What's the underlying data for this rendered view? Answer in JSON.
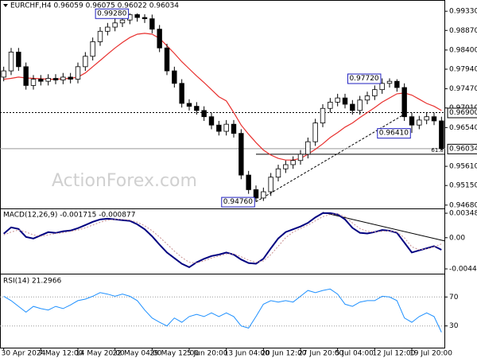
{
  "chart_data": [
    {
      "type": "candlestick",
      "title": "EURCHF,H4 0.96059 0.96075 0.96022 0.96034",
      "categories": [
        "30 Apr 2024",
        null,
        null,
        null,
        null,
        "7 May 12:00",
        null,
        null,
        null,
        null,
        "14 May 20:00",
        null,
        null,
        null,
        null,
        "22 May 04:00",
        null,
        null,
        null,
        null,
        "29 May 12:00",
        null,
        null,
        null,
        null,
        "5 Jun 20:00",
        null,
        null,
        null,
        null,
        "13 Jun 04:00",
        null,
        null,
        null,
        null,
        "20 Jun 12:00",
        null,
        null,
        null,
        null,
        "27 Jun 20:00",
        null,
        null,
        null,
        null,
        "5 Jul 04:00",
        null,
        null,
        null,
        null,
        "12 Jul 12:00",
        null,
        null,
        null,
        null,
        "19 Jul 20:00",
        null,
        null,
        null,
        null
      ],
      "open": [
        0.9775,
        0.979,
        0.9835,
        0.98,
        0.9755,
        0.977,
        0.9765,
        0.9772,
        0.9768,
        0.9775,
        0.977,
        0.98,
        0.9825,
        0.986,
        0.9885,
        0.9895,
        0.9905,
        0.9912,
        0.9925,
        0.9918,
        0.9915,
        0.989,
        0.9845,
        0.979,
        0.976,
        0.9712,
        0.9705,
        0.9695,
        0.968,
        0.966,
        0.9645,
        0.9662,
        0.964,
        0.954,
        0.9505,
        0.9485,
        0.95,
        0.9535,
        0.9555,
        0.9565,
        0.9575,
        0.959,
        0.962,
        0.9665,
        0.97,
        0.9715,
        0.9725,
        0.971,
        0.9695,
        0.972,
        0.973,
        0.9745,
        0.976,
        0.9765,
        0.975,
        0.968,
        0.966,
        0.9672,
        0.968,
        0.967
      ],
      "high": [
        0.98,
        0.9845,
        0.9845,
        0.981,
        0.978,
        0.978,
        0.9782,
        0.9782,
        0.9785,
        0.9785,
        0.981,
        0.9835,
        0.987,
        0.9895,
        0.9905,
        0.9915,
        0.9922,
        0.9928,
        0.9928,
        0.9926,
        0.9925,
        0.99,
        0.9855,
        0.98,
        0.977,
        0.9722,
        0.9715,
        0.9705,
        0.969,
        0.967,
        0.9672,
        0.9672,
        0.965,
        0.955,
        0.9515,
        0.951,
        0.9545,
        0.9565,
        0.9575,
        0.9585,
        0.96,
        0.963,
        0.9675,
        0.971,
        0.9725,
        0.9735,
        0.9735,
        0.972,
        0.973,
        0.974,
        0.9755,
        0.9772,
        0.9772,
        0.977,
        0.976,
        0.969,
        0.9682,
        0.969,
        0.969,
        0.968
      ],
      "low": [
        0.9765,
        0.978,
        0.979,
        0.9745,
        0.9745,
        0.9755,
        0.9755,
        0.9758,
        0.9758,
        0.976,
        0.976,
        0.979,
        0.9815,
        0.985,
        0.9875,
        0.9885,
        0.9895,
        0.9902,
        0.9908,
        0.9905,
        0.988,
        0.9835,
        0.978,
        0.975,
        0.9702,
        0.9695,
        0.9685,
        0.967,
        0.965,
        0.9635,
        0.9635,
        0.963,
        0.953,
        0.9495,
        0.9476,
        0.9478,
        0.949,
        0.9525,
        0.9545,
        0.9555,
        0.9565,
        0.958,
        0.961,
        0.9655,
        0.969,
        0.9705,
        0.97,
        0.9685,
        0.9685,
        0.971,
        0.972,
        0.9735,
        0.975,
        0.974,
        0.967,
        0.9641,
        0.965,
        0.9662,
        0.966,
        0.96
      ],
      "close": [
        0.979,
        0.9835,
        0.98,
        0.9755,
        0.977,
        0.9765,
        0.9772,
        0.9768,
        0.9775,
        0.977,
        0.98,
        0.9825,
        0.986,
        0.9885,
        0.9895,
        0.9905,
        0.9912,
        0.9925,
        0.9918,
        0.9915,
        0.989,
        0.9845,
        0.979,
        0.976,
        0.9712,
        0.9705,
        0.9695,
        0.968,
        0.966,
        0.9645,
        0.9662,
        0.964,
        0.954,
        0.9505,
        0.9485,
        0.95,
        0.9535,
        0.9555,
        0.9565,
        0.9575,
        0.959,
        0.962,
        0.9665,
        0.97,
        0.9715,
        0.9725,
        0.971,
        0.9695,
        0.972,
        0.973,
        0.9745,
        0.976,
        0.9765,
        0.975,
        0.968,
        0.966,
        0.9672,
        0.968,
        0.967,
        0.96034
      ],
      "color": "#000000",
      "ma": {
        "color": "#e8302e",
        "values": [
          0.977,
          0.9772,
          0.9775,
          0.9773,
          0.9772,
          0.9771,
          0.977,
          0.977,
          0.9771,
          0.9772,
          0.9775,
          0.9785,
          0.98,
          0.9815,
          0.983,
          0.9845,
          0.9858,
          0.987,
          0.9878,
          0.988,
          0.9878,
          0.9868,
          0.985,
          0.9832,
          0.9812,
          0.9795,
          0.9778,
          0.9762,
          0.9745,
          0.9728,
          0.9718,
          0.969,
          0.966,
          0.9638,
          0.9618,
          0.96,
          0.9588,
          0.958,
          0.9576,
          0.9576,
          0.958,
          0.959,
          0.9602,
          0.9615,
          0.963,
          0.9642,
          0.9655,
          0.9665,
          0.9678,
          0.969,
          0.9702,
          0.9715,
          0.9725,
          0.9735,
          0.9737,
          0.9732,
          0.9722,
          0.9712,
          0.9705,
          0.9695
        ]
      },
      "ylim": [
        0.946,
        0.996
      ],
      "yticks": [
        {
          "value": 0.9933,
          "label": "0.99330"
        },
        {
          "value": 0.9887,
          "label": "0.98870"
        },
        {
          "value": 0.984,
          "label": "0.98400"
        },
        {
          "value": 0.9794,
          "label": "0.97940"
        },
        {
          "value": 0.9747,
          "label": "0.97470"
        },
        {
          "value": 0.9701,
          "label": "0.97010"
        },
        {
          "value": 0.9654,
          "label": "0.96540"
        },
        {
          "value": 0.9561,
          "label": "0.95610"
        },
        {
          "value": 0.9515,
          "label": "0.95150"
        },
        {
          "value": 0.9468,
          "label": "0.94680"
        }
      ],
      "grid": false,
      "price_labels": [
        {
          "value": 0.969,
          "label": "0.96900",
          "line": "dotted"
        },
        {
          "value": 0.96034,
          "label": "0.96034",
          "line": "solid"
        }
      ],
      "annotations": [
        {
          "value": 0.9928,
          "label": "0.99280"
        },
        {
          "value": 0.9772,
          "label": "0.97720"
        },
        {
          "value": 0.9641,
          "label": "0.96410"
        },
        {
          "value": 0.9476,
          "label": "0.94760"
        }
      ],
      "fib": {
        "value": 0.959,
        "label": "61.8"
      },
      "watermark": "ActionForex.com"
    },
    {
      "type": "line",
      "title": "MACD(12,26,9) -0.001715 -0.000877",
      "series": [
        {
          "color": "#000080",
          "values": [
            0.00057,
            0.00147,
            0.00124,
            0.00011,
            -0.00011,
            0.00034,
            0.00079,
            0.00068,
            0.0009,
            0.00102,
            0.00136,
            0.0018,
            0.00226,
            0.0026,
            0.0027,
            0.0026,
            0.0025,
            0.0024,
            0.0019,
            0.0012,
            0.0002,
            -0.001,
            -0.0021,
            -0.0029,
            -0.0037,
            -0.0042,
            -0.0035,
            -0.003,
            -0.0026,
            -0.0024,
            -0.0021,
            -0.0024,
            -0.0031,
            -0.0036,
            -0.0037,
            -0.003,
            -0.0015,
            -0.0001,
            0.0008,
            0.0012,
            0.0016,
            0.0021,
            0.0029,
            0.0035,
            0.0035,
            0.0033,
            0.0026,
            0.0014,
            0.0007,
            0.0006,
            0.0008,
            0.0011,
            0.001,
            0.0007,
            -0.0007,
            -0.0021,
            -0.0018,
            -0.0015,
            -0.0012,
            -0.001715
          ]
        },
        {
          "color": "#c89090",
          "style": "dotted",
          "values": [
            0.0004,
            0.0008,
            0.0011,
            0.0008,
            0.0004,
            0.0002,
            0.0004,
            0.0006,
            0.0007,
            0.0009,
            0.0011,
            0.0014,
            0.0018,
            0.0022,
            0.0025,
            0.0026,
            0.0026,
            0.0025,
            0.0022,
            0.0017,
            0.001,
            0.0001,
            -0.0009,
            -0.0019,
            -0.0028,
            -0.0035,
            -0.0036,
            -0.0033,
            -0.0029,
            -0.0026,
            -0.0023,
            -0.0023,
            -0.0027,
            -0.0032,
            -0.0035,
            -0.0033,
            -0.0024,
            -0.0012,
            0,
            0.0008,
            0.0013,
            0.0018,
            0.0024,
            0.003,
            0.0033,
            0.0034,
            0.003,
            0.0021,
            0.0013,
            0.0009,
            0.0008,
            0.0009,
            0.001,
            0.0008,
            0,
            -0.0013,
            -0.0017,
            -0.0016,
            -0.0013,
            -0.000877
          ]
        }
      ],
      "ylim": [
        -0.005,
        0.00405
      ],
      "yticks": [
        0.003481,
        {
          "value": 0,
          "label": "0.00"
        },
        -0.004436
      ],
      "grid": false
    },
    {
      "type": "line",
      "title": "RSI(14) 21.2966",
      "series": [
        {
          "color": "#1e90ff",
          "values": [
            71,
            65,
            57,
            49,
            57,
            54,
            52,
            57,
            54,
            59,
            65,
            67,
            71,
            76,
            74,
            71,
            74,
            71,
            65,
            52,
            41,
            35,
            30,
            41,
            35,
            43,
            46,
            43,
            48,
            43,
            48,
            43,
            30,
            27,
            43,
            60,
            65,
            63,
            65,
            63,
            71,
            79,
            76,
            79,
            81,
            74,
            60,
            57,
            63,
            65,
            65,
            71,
            70,
            65,
            41,
            35,
            43,
            48,
            43,
            21.2966
          ]
        }
      ],
      "ylim": [
        0,
        100
      ],
      "yticks": [
        70,
        30
      ],
      "grid": true
    }
  ]
}
